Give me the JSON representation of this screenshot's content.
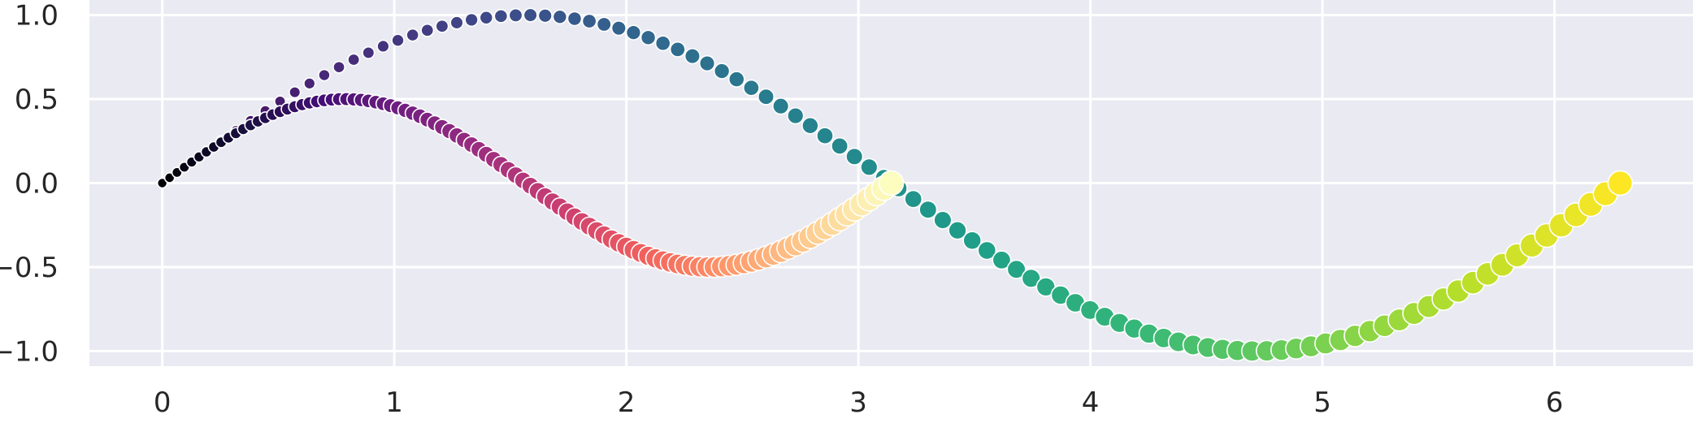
{
  "chart_data": {
    "type": "scatter",
    "title": "",
    "xlabel": "",
    "ylabel": "",
    "xlim": [
      -0.314,
      6.597
    ],
    "ylim": [
      -1.09,
      1.09
    ],
    "xticks": [
      0,
      1,
      2,
      3,
      4,
      5,
      6
    ],
    "xtick_labels": [
      "0",
      "1",
      "2",
      "3",
      "4",
      "5",
      "6"
    ],
    "yticks": [
      -1.0,
      -0.5,
      0.0,
      0.5,
      1.0
    ],
    "ytick_labels": [
      "−1.0",
      "−0.5",
      "0.0",
      "0.5",
      "1.0"
    ],
    "grid": true,
    "legend": "none",
    "background": "#eaeaf2",
    "grid_color": "#ffffff",
    "series": [
      {
        "function": "y = sin(x)",
        "x_range": [
          0,
          6.2832
        ],
        "n_points": 100,
        "colormap": "viridis",
        "colormap_stops": [
          "#440154",
          "#482878",
          "#3e4989",
          "#31688e",
          "#26828e",
          "#1f9e89",
          "#35b779",
          "#6ece58",
          "#b5de2b",
          "#fde725"
        ],
        "marker_size_range": "small to large (increasing with x)"
      },
      {
        "function": "y = sin(x) * cos(x)",
        "x_range": [
          0,
          3.1416
        ],
        "n_points": 100,
        "colormap": "magma",
        "colormap_stops": [
          "#000004",
          "#180f3d",
          "#440f76",
          "#721f81",
          "#9e2f7f",
          "#cd4071",
          "#f1605d",
          "#fd9668",
          "#feca8d",
          "#fcfdbf"
        ],
        "marker_size_range": "small to large (increasing with x)"
      }
    ]
  }
}
